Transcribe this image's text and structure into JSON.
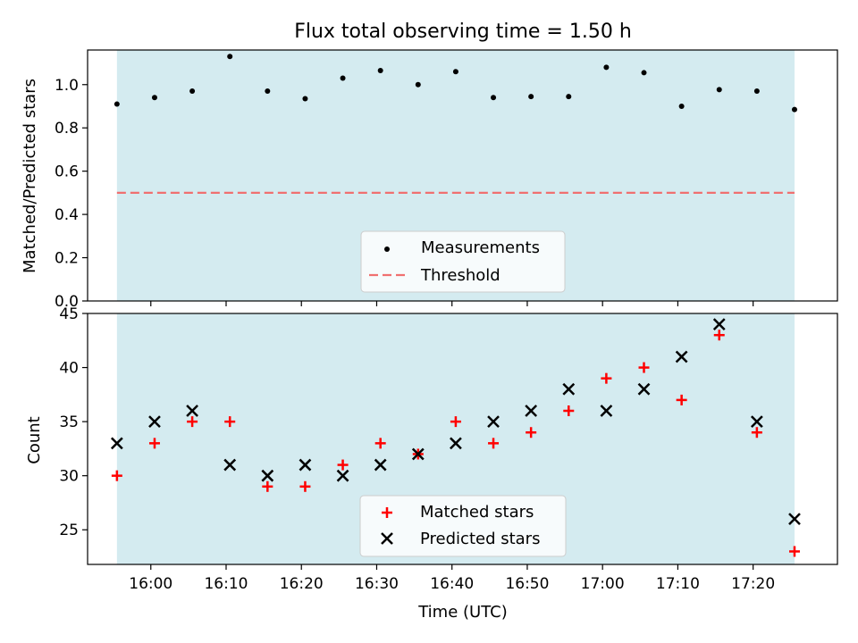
{
  "chart_data": [
    {
      "type": "scatter",
      "title": "Flux total observing time = 1.50 h",
      "ylabel": "Matched/Predicted stars",
      "ylim": [
        0,
        1.16
      ],
      "xlim": [
        "15:51:36",
        "17:31:12"
      ],
      "yticks": [
        "0.0",
        "0.2",
        "0.4",
        "0.6",
        "0.8",
        "1.0"
      ],
      "ytick_values": [
        0,
        0.2,
        0.4,
        0.6,
        0.8,
        1.0
      ],
      "shaded_span": [
        "15:55:30",
        "17:25:30"
      ],
      "shade_color": "#d4ebf0",
      "threshold": {
        "name": "Threshold",
        "value": 0.5,
        "color": "#f07070"
      },
      "legend": {
        "location": "bottom-center",
        "entries": [
          "Measurements",
          "Threshold"
        ]
      },
      "series": [
        {
          "name": "Measurements",
          "marker": "dot",
          "color": "#000000",
          "x": [
            "15:55:30",
            "16:00:30",
            "16:05:30",
            "16:10:30",
            "16:15:30",
            "16:20:30",
            "16:25:30",
            "16:30:30",
            "16:35:30",
            "16:40:30",
            "16:45:30",
            "16:50:30",
            "16:55:30",
            "17:00:30",
            "17:05:30",
            "17:10:30",
            "17:15:30",
            "17:20:30",
            "17:25:30"
          ],
          "values": [
            0.91,
            0.94,
            0.97,
            1.13,
            0.97,
            0.935,
            1.03,
            1.065,
            1.0,
            1.06,
            0.94,
            0.945,
            0.945,
            1.08,
            1.055,
            0.9,
            0.977,
            0.97,
            0.885
          ]
        }
      ]
    },
    {
      "type": "scatter",
      "xlabel": "Time (UTC)",
      "ylabel": "Count",
      "ylim": [
        21.8,
        45
      ],
      "xlim": [
        "15:51:36",
        "17:31:12"
      ],
      "yticks": [
        "25",
        "30",
        "35",
        "40",
        "45"
      ],
      "ytick_values": [
        25,
        30,
        35,
        40,
        45
      ],
      "xticks": [
        "16:00",
        "16:10",
        "16:20",
        "16:30",
        "16:40",
        "16:50",
        "17:00",
        "17:10",
        "17:20"
      ],
      "shaded_span": [
        "15:55:30",
        "17:25:30"
      ],
      "shade_color": "#d4ebf0",
      "legend": {
        "location": "bottom-center",
        "entries": [
          "Matched stars",
          "Predicted stars"
        ]
      },
      "series": [
        {
          "name": "Matched stars",
          "marker": "plus",
          "color": "#ff0000",
          "x": [
            "15:55:30",
            "16:00:30",
            "16:05:30",
            "16:10:30",
            "16:15:30",
            "16:20:30",
            "16:25:30",
            "16:30:30",
            "16:35:30",
            "16:40:30",
            "16:45:30",
            "16:50:30",
            "16:55:30",
            "17:00:30",
            "17:05:30",
            "17:10:30",
            "17:15:30",
            "17:20:30",
            "17:25:30"
          ],
          "values": [
            30,
            33,
            35,
            35,
            29,
            29,
            31,
            33,
            32,
            35,
            33,
            34,
            36,
            39,
            40,
            37,
            43,
            34,
            23
          ]
        },
        {
          "name": "Predicted stars",
          "marker": "x",
          "color": "#000000",
          "x": [
            "15:55:30",
            "16:00:30",
            "16:05:30",
            "16:10:30",
            "16:15:30",
            "16:20:30",
            "16:25:30",
            "16:30:30",
            "16:35:30",
            "16:40:30",
            "16:45:30",
            "16:50:30",
            "16:55:30",
            "17:00:30",
            "17:05:30",
            "17:10:30",
            "17:15:30",
            "17:20:30",
            "17:25:30"
          ],
          "values": [
            33,
            35,
            36,
            31,
            30,
            31,
            30,
            31,
            32,
            33,
            35,
            36,
            38,
            36,
            38,
            41,
            44,
            35,
            26
          ]
        }
      ]
    }
  ]
}
